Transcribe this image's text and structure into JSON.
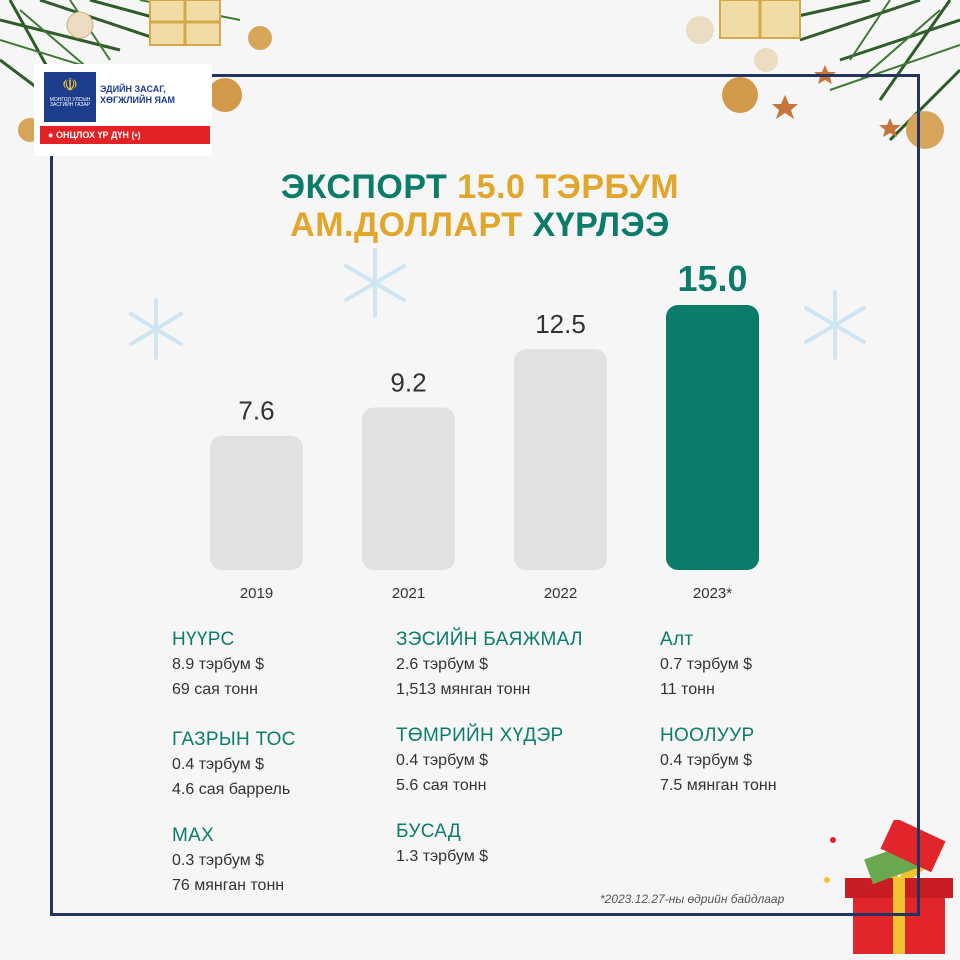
{
  "logo": {
    "emblem_caption": "МОНГОЛ УЛСЫН ЗАСГИЙН ГАЗАР",
    "ministry": "ЭДИЙН ЗАСАГ, ХӨГЖЛИЙН ЯАМ",
    "badge": "ОНЦЛОХ ҮР ДҮН"
  },
  "title": {
    "line1_a": "ЭКСПОРТ ",
    "line1_b": "15.0 ТЭРБУМ",
    "line2_a": "АМ.ДОЛЛАРТ ",
    "line2_b": "ХҮРЛЭЭ"
  },
  "colors": {
    "bar_default": "#e1e1e1",
    "bar_highlight": "#0a7c69",
    "accent_gold": "#e2a62a",
    "frame": "#22345f"
  },
  "chart_data": {
    "type": "bar",
    "categories": [
      "2019",
      "2021",
      "2022",
      "2023*"
    ],
    "values": [
      7.6,
      9.2,
      12.5,
      15.0
    ],
    "value_labels": [
      "7.6",
      "9.2",
      "12.5",
      "15.0"
    ],
    "highlight_index": 3,
    "title": "",
    "xlabel": "",
    "ylabel": "",
    "ylim": [
      0,
      15.0
    ],
    "grid": false
  },
  "stats": {
    "col1": [
      {
        "name": "НҮҮРС",
        "lines": [
          "8.9 тэрбум $",
          "69 сая тонн"
        ]
      },
      {
        "name": "ГАЗРЫН ТОС",
        "lines": [
          "0.4 тэрбум $",
          "4.6 сая баррель"
        ]
      },
      {
        "name": "МАХ",
        "lines": [
          "0.3 тэрбум $",
          "76 мянган тонн"
        ]
      }
    ],
    "col2": [
      {
        "name": "ЗЭСИЙН БАЯЖМАЛ",
        "lines": [
          "2.6 тэрбум $",
          "1,513 мянган тонн"
        ]
      },
      {
        "name": "ТӨМРИЙН ХҮДЭР",
        "lines": [
          "0.4 тэрбум $",
          "5.6 сая тонн"
        ]
      },
      {
        "name": "БУСАД",
        "lines": [
          "1.3 тэрбум $"
        ]
      }
    ],
    "col3": [
      {
        "name": "Алт",
        "lines": [
          "0.7 тэрбум $",
          "11 тонн"
        ]
      },
      {
        "name": "НООЛУУР",
        "lines": [
          "0.4 тэрбум $",
          "7.5 мянган тонн"
        ]
      }
    ]
  },
  "footnote": "*2023.12.27-ны өдрийн байдлаар"
}
